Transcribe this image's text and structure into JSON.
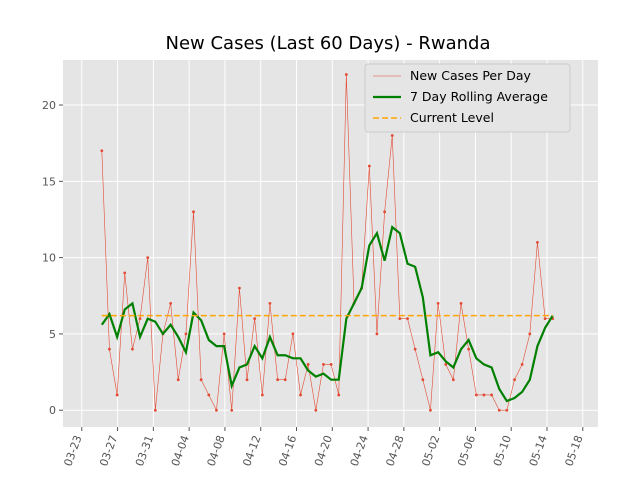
{
  "chart_data": {
    "type": "line",
    "title": "New Cases (Last 60 Days) - Rwanda",
    "x": [
      2.24,
      3.09,
      3.95,
      4.8,
      5.66,
      6.51,
      7.37,
      8.22,
      9.07,
      9.93,
      10.78,
      11.64,
      12.49,
      13.34,
      14.2,
      15.05,
      15.91,
      16.76,
      17.62,
      18.47,
      19.32,
      20.18,
      21.03,
      21.89,
      22.74,
      23.6,
      24.45,
      25.3,
      26.16,
      27.01,
      27.87,
      28.72,
      29.57,
      30.43,
      31.28,
      32.14,
      32.99,
      33.85,
      34.7,
      35.55,
      36.41,
      37.26,
      38.12,
      38.97,
      39.83,
      40.68,
      41.53,
      42.39,
      43.24,
      44.1,
      44.95,
      45.81,
      46.66,
      47.51,
      48.37,
      49.22,
      50.08,
      50.93,
      51.79,
      52.64
    ],
    "series": [
      {
        "name": "New Cases Per Day",
        "color": "#e24a33",
        "values": [
          17,
          4,
          1,
          9,
          4,
          6,
          10,
          0,
          5,
          7,
          2,
          5,
          13,
          2,
          1,
          0,
          5,
          0,
          8,
          2,
          6,
          1,
          7,
          2,
          2,
          5,
          1,
          3,
          0,
          3,
          3,
          1,
          22,
          7,
          8,
          16,
          5,
          13,
          18,
          6,
          6,
          4,
          2,
          0,
          7,
          3,
          2,
          7,
          4,
          1,
          1,
          1,
          0,
          0,
          2,
          3,
          5,
          11,
          6,
          6
        ]
      },
      {
        "name": "7 Day Rolling Average",
        "color": "#008000",
        "values": [
          5.6,
          6.3,
          4.8,
          6.6,
          7.0,
          4.8,
          6.0,
          5.8,
          5.0,
          5.6,
          4.8,
          3.8,
          6.4,
          5.9,
          4.6,
          4.2,
          4.2,
          1.6,
          2.8,
          3.0,
          4.2,
          3.4,
          4.8,
          3.6,
          3.6,
          3.4,
          3.4,
          2.6,
          2.2,
          2.4,
          2.0,
          2.0,
          6.0,
          7.0,
          8.0,
          10.8,
          11.6,
          9.8,
          12.0,
          11.6,
          9.6,
          9.4,
          7.4,
          3.6,
          3.8,
          3.2,
          2.8,
          4.0,
          4.6,
          3.4,
          3.0,
          2.8,
          1.4,
          0.6,
          0.8,
          1.2,
          2.0,
          4.2,
          5.4,
          6.2
        ]
      }
    ],
    "current_level": {
      "name": "Current Level",
      "color": "#ffa500",
      "value": 6.2
    },
    "xlim": [
      -2.1,
      57.7
    ],
    "xticks": [
      {
        "value": 0,
        "label": "03-23"
      },
      {
        "value": 4,
        "label": "03-27"
      },
      {
        "value": 8,
        "label": "03-31"
      },
      {
        "value": 12,
        "label": "04-04"
      },
      {
        "value": 16,
        "label": "04-08"
      },
      {
        "value": 20,
        "label": "04-12"
      },
      {
        "value": 24,
        "label": "04-16"
      },
      {
        "value": 28,
        "label": "04-20"
      },
      {
        "value": 32,
        "label": "04-24"
      },
      {
        "value": 36,
        "label": "04-28"
      },
      {
        "value": 40,
        "label": "05-02"
      },
      {
        "value": 44,
        "label": "05-06"
      },
      {
        "value": 48,
        "label": "05-10"
      },
      {
        "value": 52,
        "label": "05-14"
      },
      {
        "value": 56,
        "label": "05-18"
      }
    ],
    "ylim": [
      -1.1,
      22.95
    ],
    "yticks": [
      0,
      5,
      10,
      15,
      20
    ],
    "grid": true,
    "legend": "upper right"
  }
}
